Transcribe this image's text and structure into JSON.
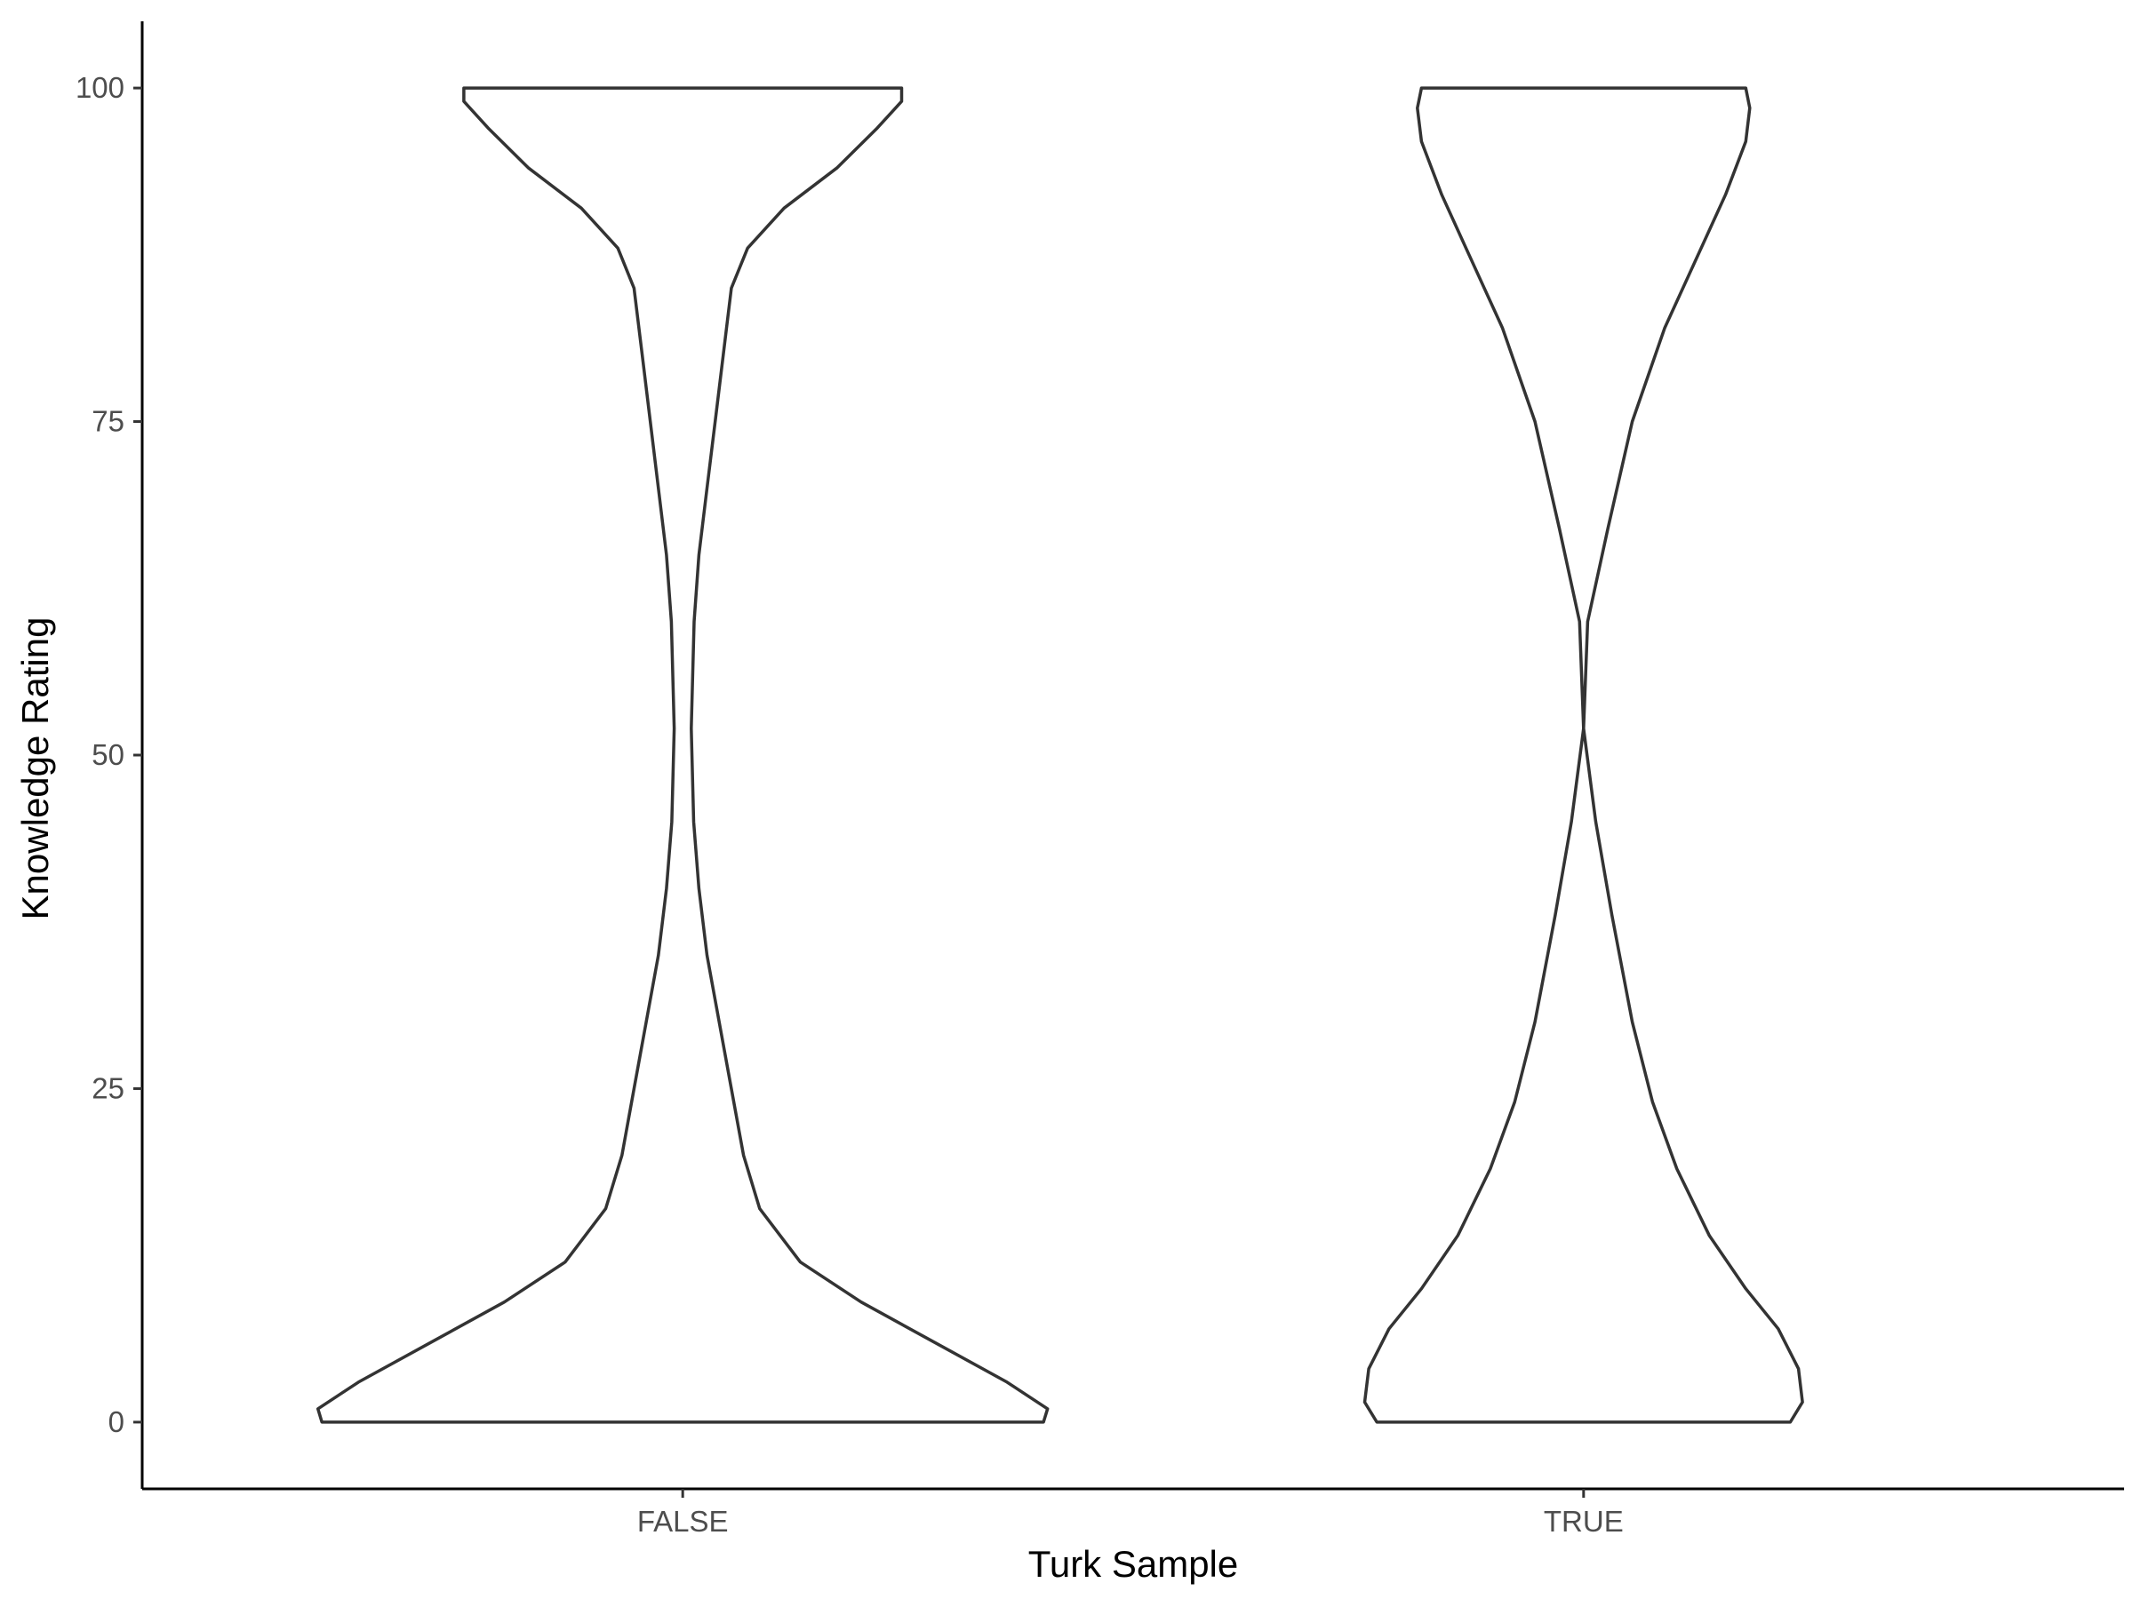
{
  "chart_data": {
    "type": "violin",
    "xlabel": "Turk Sample",
    "ylabel": "Knowledge Rating",
    "categories": [
      "FALSE",
      "TRUE"
    ],
    "ylim": [
      -5,
      105
    ],
    "yticks": [
      "0",
      "25",
      "50",
      "75",
      "100"
    ],
    "grid": false,
    "legend": "none",
    "series": [
      {
        "category": "FALSE",
        "density_profile": [
          {
            "y": 0,
            "w": 0.89
          },
          {
            "y": 1,
            "w": 0.9
          },
          {
            "y": 3,
            "w": 0.8
          },
          {
            "y": 6,
            "w": 0.62
          },
          {
            "y": 9,
            "w": 0.44
          },
          {
            "y": 12,
            "w": 0.29
          },
          {
            "y": 16,
            "w": 0.19
          },
          {
            "y": 20,
            "w": 0.15
          },
          {
            "y": 25,
            "w": 0.12
          },
          {
            "y": 30,
            "w": 0.09
          },
          {
            "y": 35,
            "w": 0.06
          },
          {
            "y": 40,
            "w": 0.04
          },
          {
            "y": 45,
            "w": 0.027
          },
          {
            "y": 52,
            "w": 0.021
          },
          {
            "y": 60,
            "w": 0.028
          },
          {
            "y": 65,
            "w": 0.04
          },
          {
            "y": 70,
            "w": 0.06
          },
          {
            "y": 75,
            "w": 0.08
          },
          {
            "y": 80,
            "w": 0.1
          },
          {
            "y": 85,
            "w": 0.12
          },
          {
            "y": 88,
            "w": 0.16
          },
          {
            "y": 91,
            "w": 0.25
          },
          {
            "y": 94,
            "w": 0.38
          },
          {
            "y": 97,
            "w": 0.48
          },
          {
            "y": 99,
            "w": 0.54
          },
          {
            "y": 100,
            "w": 0.54
          }
        ]
      },
      {
        "category": "TRUE",
        "density_profile": [
          {
            "y": 0,
            "w": 0.51
          },
          {
            "y": 1.5,
            "w": 0.54
          },
          {
            "y": 4,
            "w": 0.53
          },
          {
            "y": 7,
            "w": 0.48
          },
          {
            "y": 10,
            "w": 0.4
          },
          {
            "y": 14,
            "w": 0.31
          },
          {
            "y": 19,
            "w": 0.23
          },
          {
            "y": 24,
            "w": 0.17
          },
          {
            "y": 30,
            "w": 0.12
          },
          {
            "y": 38,
            "w": 0.07
          },
          {
            "y": 45,
            "w": 0.03
          },
          {
            "y": 52,
            "w": 0.0
          },
          {
            "y": 60,
            "w": 0.01
          },
          {
            "y": 67,
            "w": 0.06
          },
          {
            "y": 75,
            "w": 0.12
          },
          {
            "y": 82,
            "w": 0.2
          },
          {
            "y": 88,
            "w": 0.29
          },
          {
            "y": 92,
            "w": 0.35
          },
          {
            "y": 96,
            "w": 0.4
          },
          {
            "y": 98.5,
            "w": 0.41
          },
          {
            "y": 100,
            "w": 0.4
          }
        ]
      }
    ]
  }
}
